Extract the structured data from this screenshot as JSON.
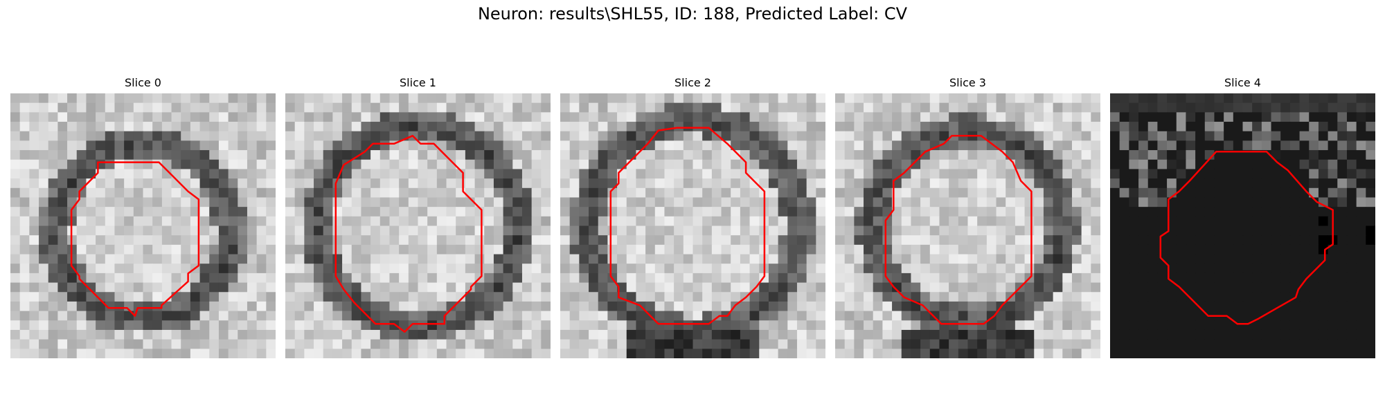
{
  "figure": {
    "title": "Neuron: results\\SHL55, ID: 188, Predicted Label: CV"
  },
  "panels": [
    {
      "label": "Slice 0",
      "seed": 11,
      "ring_cx": 0.5,
      "ring_cy": 0.52,
      "ring_r": 0.3,
      "style": "ring"
    },
    {
      "label": "Slice 1",
      "seed": 23,
      "ring_cx": 0.5,
      "ring_cy": 0.5,
      "ring_r": 0.35,
      "style": "ring"
    },
    {
      "label": "Slice 2",
      "seed": 37,
      "ring_cx": 0.5,
      "ring_cy": 0.5,
      "ring_r": 0.37,
      "style": "ring"
    },
    {
      "label": "Slice 3",
      "seed": 51,
      "ring_cx": 0.5,
      "ring_cy": 0.5,
      "ring_r": 0.33,
      "style": "ring"
    },
    {
      "label": "Slice 4",
      "seed": 67,
      "ring_cx": 0.5,
      "ring_cy": 0.5,
      "ring_r": 0.3,
      "style": "dark"
    }
  ],
  "contour_color": "#ff0000",
  "contours": [
    [
      [
        0.33,
        0.26
      ],
      [
        0.56,
        0.26
      ],
      [
        0.67,
        0.37
      ],
      [
        0.71,
        0.4
      ],
      [
        0.71,
        0.65
      ],
      [
        0.67,
        0.68
      ],
      [
        0.67,
        0.71
      ],
      [
        0.57,
        0.8
      ],
      [
        0.57,
        0.81
      ],
      [
        0.48,
        0.81
      ],
      [
        0.47,
        0.84
      ],
      [
        0.44,
        0.81
      ],
      [
        0.37,
        0.81
      ],
      [
        0.26,
        0.7
      ],
      [
        0.26,
        0.69
      ],
      [
        0.23,
        0.65
      ],
      [
        0.23,
        0.44
      ],
      [
        0.26,
        0.4
      ],
      [
        0.26,
        0.37
      ],
      [
        0.33,
        0.3
      ]
    ],
    [
      [
        0.3,
        0.22
      ],
      [
        0.33,
        0.19
      ],
      [
        0.41,
        0.19
      ],
      [
        0.48,
        0.16
      ],
      [
        0.51,
        0.19
      ],
      [
        0.56,
        0.19
      ],
      [
        0.63,
        0.26
      ],
      [
        0.67,
        0.3
      ],
      [
        0.67,
        0.37
      ],
      [
        0.71,
        0.41
      ],
      [
        0.74,
        0.44
      ],
      [
        0.74,
        0.69
      ],
      [
        0.7,
        0.73
      ],
      [
        0.7,
        0.74
      ],
      [
        0.6,
        0.84
      ],
      [
        0.6,
        0.87
      ],
      [
        0.48,
        0.87
      ],
      [
        0.45,
        0.9
      ],
      [
        0.41,
        0.87
      ],
      [
        0.34,
        0.87
      ],
      [
        0.26,
        0.79
      ],
      [
        0.22,
        0.74
      ],
      [
        0.19,
        0.69
      ],
      [
        0.19,
        0.34
      ],
      [
        0.22,
        0.27
      ]
    ],
    [
      [
        0.37,
        0.14
      ],
      [
        0.44,
        0.13
      ],
      [
        0.56,
        0.13
      ],
      [
        0.63,
        0.19
      ],
      [
        0.7,
        0.26
      ],
      [
        0.7,
        0.3
      ],
      [
        0.74,
        0.34
      ],
      [
        0.77,
        0.37
      ],
      [
        0.77,
        0.69
      ],
      [
        0.74,
        0.73
      ],
      [
        0.7,
        0.77
      ],
      [
        0.66,
        0.8
      ],
      [
        0.63,
        0.84
      ],
      [
        0.6,
        0.84
      ],
      [
        0.56,
        0.87
      ],
      [
        0.37,
        0.87
      ],
      [
        0.34,
        0.84
      ],
      [
        0.3,
        0.8
      ],
      [
        0.22,
        0.77
      ],
      [
        0.22,
        0.73
      ],
      [
        0.19,
        0.69
      ],
      [
        0.19,
        0.37
      ],
      [
        0.22,
        0.34
      ],
      [
        0.22,
        0.3
      ],
      [
        0.26,
        0.26
      ],
      [
        0.33,
        0.19
      ]
    ],
    [
      [
        0.34,
        0.22
      ],
      [
        0.41,
        0.19
      ],
      [
        0.44,
        0.16
      ],
      [
        0.55,
        0.16
      ],
      [
        0.63,
        0.22
      ],
      [
        0.67,
        0.26
      ],
      [
        0.7,
        0.33
      ],
      [
        0.74,
        0.37
      ],
      [
        0.74,
        0.69
      ],
      [
        0.7,
        0.73
      ],
      [
        0.66,
        0.77
      ],
      [
        0.63,
        0.8
      ],
      [
        0.6,
        0.84
      ],
      [
        0.56,
        0.87
      ],
      [
        0.4,
        0.87
      ],
      [
        0.33,
        0.8
      ],
      [
        0.26,
        0.77
      ],
      [
        0.22,
        0.73
      ],
      [
        0.19,
        0.69
      ],
      [
        0.19,
        0.48
      ],
      [
        0.22,
        0.44
      ],
      [
        0.22,
        0.33
      ],
      [
        0.26,
        0.3
      ]
    ],
    [
      [
        0.4,
        0.22
      ],
      [
        0.59,
        0.22
      ],
      [
        0.63,
        0.26
      ],
      [
        0.67,
        0.29
      ],
      [
        0.74,
        0.37
      ],
      [
        0.78,
        0.41
      ],
      [
        0.84,
        0.44
      ],
      [
        0.84,
        0.57
      ],
      [
        0.81,
        0.59
      ],
      [
        0.81,
        0.63
      ],
      [
        0.74,
        0.7
      ],
      [
        0.71,
        0.74
      ],
      [
        0.7,
        0.77
      ],
      [
        0.63,
        0.81
      ],
      [
        0.56,
        0.85
      ],
      [
        0.52,
        0.87
      ],
      [
        0.48,
        0.87
      ],
      [
        0.44,
        0.84
      ],
      [
        0.37,
        0.84
      ],
      [
        0.26,
        0.73
      ],
      [
        0.22,
        0.7
      ],
      [
        0.22,
        0.65
      ],
      [
        0.19,
        0.62
      ],
      [
        0.19,
        0.54
      ],
      [
        0.22,
        0.52
      ],
      [
        0.22,
        0.4
      ],
      [
        0.26,
        0.37
      ],
      [
        0.3,
        0.33
      ]
    ]
  ]
}
